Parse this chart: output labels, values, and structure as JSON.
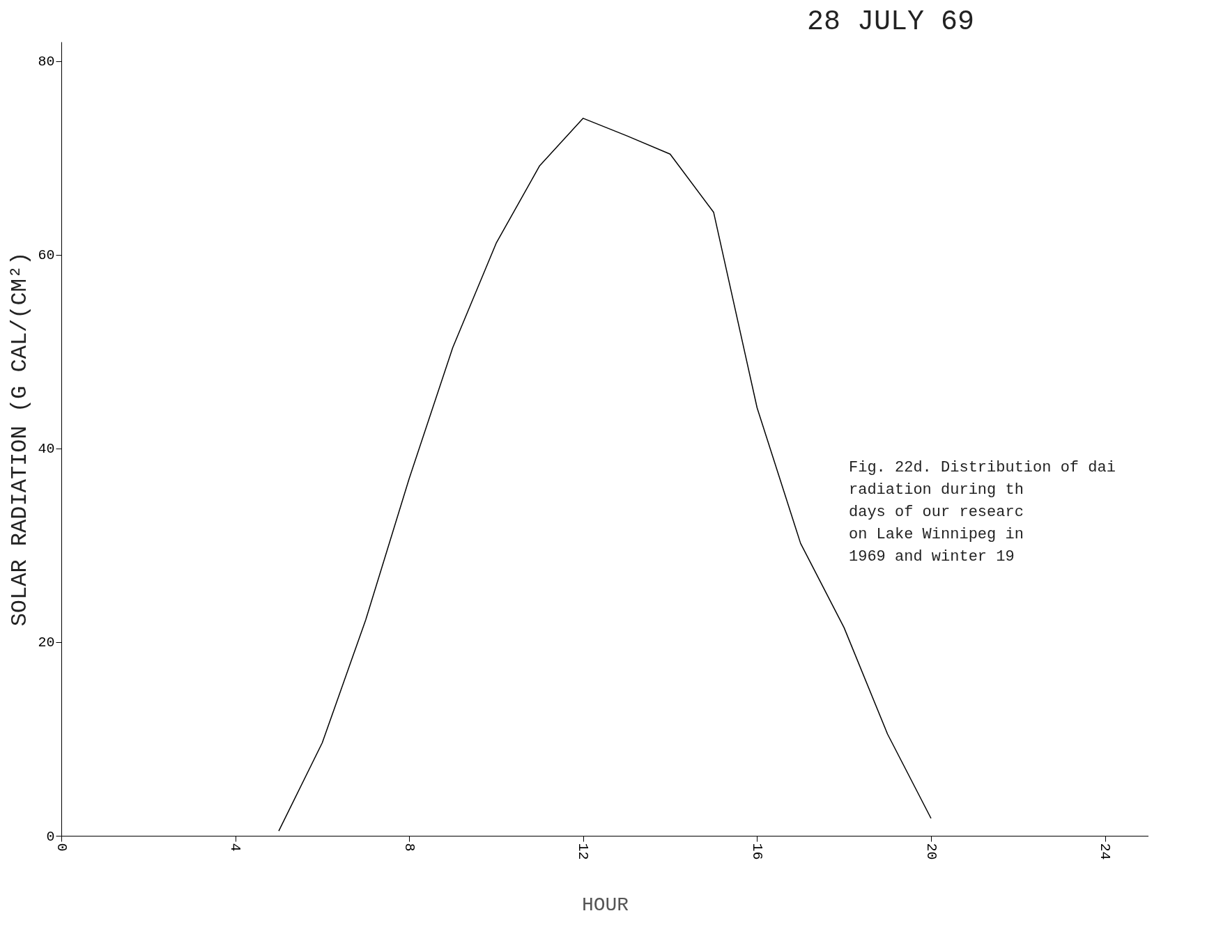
{
  "chart_data": {
    "type": "line",
    "title": "28 JULY 69",
    "xlabel": "HOUR",
    "ylabel": "SOLAR RADIATION (G CAL/(CM²)",
    "x": [
      5,
      6,
      7,
      8,
      9,
      10,
      11,
      12,
      13,
      14,
      15,
      16,
      17,
      18,
      19,
      20
    ],
    "series": [
      {
        "color": "#000000",
        "values": [
          0.5,
          9.6,
          22.3,
          36.9,
          50.4,
          61.2,
          69.2,
          74.1,
          72.3,
          70.4,
          64.4,
          44.2,
          30.2,
          21.5,
          10.5,
          1.8
        ]
      }
    ],
    "xlim": [
      0,
      25
    ],
    "xticks": [
      0,
      4,
      8,
      12,
      16,
      20,
      24
    ],
    "ylim": [
      0,
      82
    ],
    "yticks": [
      0,
      20,
      40,
      60,
      80
    ],
    "grid": false,
    "marker": "none",
    "line_style": "solid",
    "annotations": [
      "Fig. 22d.  Distribution of dai\n           radiation during th\n           days of our researc\n           on Lake Winnipeg in\n           1969 and winter 19"
    ]
  }
}
